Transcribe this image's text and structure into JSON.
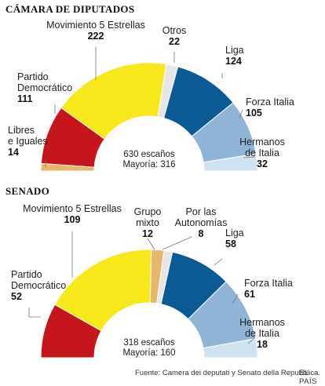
{
  "chart_data": [
    {
      "type": "pie",
      "title": "CÁMARA DE DIPUTADOS",
      "center_text": [
        "630 escaños",
        "Mayoría: 316"
      ],
      "slices": [
        {
          "name": [
            "Libres",
            "e Iguales"
          ],
          "value": 14,
          "value_label": "14",
          "color": "#e8b66b"
        },
        {
          "name": [
            "Partido",
            "Democrático"
          ],
          "value": 111,
          "value_label": "111",
          "color": "#c4161c"
        },
        {
          "name": [
            "Movimiento 5 Estrellas"
          ],
          "value": 222,
          "value_label": "222",
          "color": "#f7e81b"
        },
        {
          "name": [
            "Otros"
          ],
          "value": 22,
          "value_label": "22",
          "color": "#e6e6e6"
        },
        {
          "name": [
            "Liga"
          ],
          "value": 124,
          "value_label": "124",
          "color": "#0b5a93"
        },
        {
          "name": [
            "Forza Italia"
          ],
          "value": 105,
          "value_label": "105",
          "color": "#8fb4d6"
        },
        {
          "name": [
            "Hermanos",
            "de Italia"
          ],
          "value": 32,
          "value_label": "32",
          "color": "#cfe2ef"
        }
      ]
    },
    {
      "type": "pie",
      "title": "SENADO",
      "center_text": [
        "318 escaños",
        "Mayoría: 160"
      ],
      "slices": [
        {
          "name": [
            "Partido",
            "Democrático"
          ],
          "value": 52,
          "value_label": "52",
          "color": "#c4161c"
        },
        {
          "name": [
            "Movimiento 5 Estrellas"
          ],
          "value": 109,
          "value_label": "109",
          "color": "#f7e81b"
        },
        {
          "name": [
            "Grupo",
            "mixto"
          ],
          "value": 12,
          "value_label": "12",
          "color": "#e8b66b"
        },
        {
          "name": [
            "Por las",
            "Autonomías"
          ],
          "value": 8,
          "value_label": "8",
          "color": "#e6e6e6"
        },
        {
          "name": [
            "Liga"
          ],
          "value": 58,
          "value_label": "58",
          "color": "#0b5a93"
        },
        {
          "name": [
            "Forza Italia"
          ],
          "value": 61,
          "value_label": "61",
          "color": "#8fb4d6"
        },
        {
          "name": [
            "Hermanos",
            "de Italia"
          ],
          "value": 18,
          "value_label": "18",
          "color": "#cfe2ef"
        }
      ]
    }
  ],
  "footer": {
    "source": "Fuente: Camera dei deputati y Senato della Repubblica.",
    "brand": "EL PAÍS"
  }
}
